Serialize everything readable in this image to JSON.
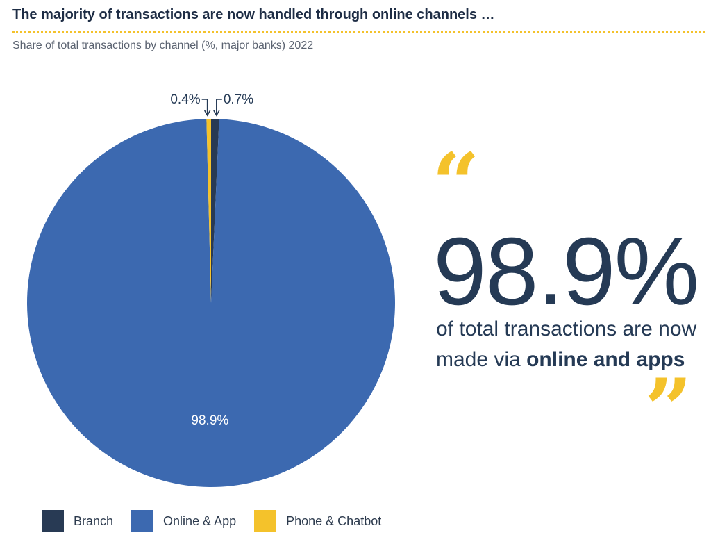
{
  "title": "The majority of transactions are now handled through online channels …",
  "subtitle": "Share of total transactions by channel (%, major banks) 2022",
  "colors": {
    "branch": "#283a54",
    "online": "#3c69b0",
    "phone": "#f4c22b",
    "text_dark": "#253a55",
    "divider": "#f4c22b"
  },
  "chart_data": {
    "type": "pie",
    "title": "Share of total transactions by channel (%, major banks) 2022",
    "slices": [
      {
        "name": "Branch",
        "value": 0.7,
        "label": "0.7%",
        "color": "#283a54"
      },
      {
        "name": "Online & App",
        "value": 98.9,
        "label": "98.9%",
        "color": "#3c69b0"
      },
      {
        "name": "Phone & Chatbot",
        "value": 0.4,
        "label": "0.4%",
        "color": "#f4c22b"
      }
    ],
    "legend_position": "bottom-left"
  },
  "callout": {
    "open_quote": "“",
    "big_number": "98.9%",
    "text_plain": "of total transactions are now made via",
    "text_bold": "online and apps",
    "close_quote": "”"
  },
  "legend": [
    {
      "label": "Branch",
      "color": "#283a54"
    },
    {
      "label": "Online & App",
      "color": "#3c69b0"
    },
    {
      "label": "Phone & Chatbot",
      "color": "#f4c22b"
    }
  ]
}
